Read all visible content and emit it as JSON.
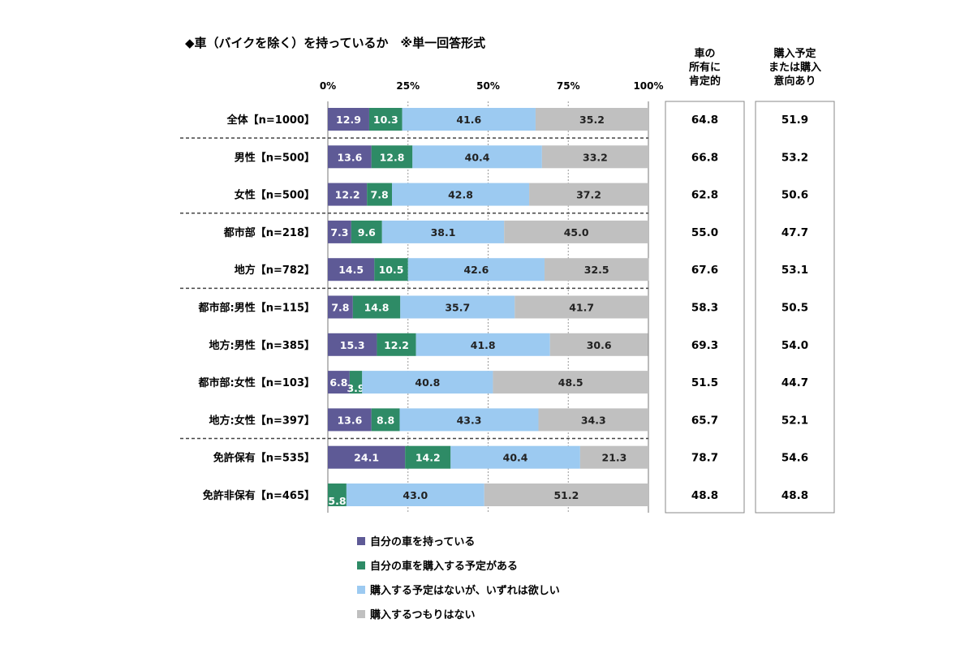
{
  "chart_data": {
    "type": "bar",
    "orientation": "horizontal",
    "stacked": true,
    "percent_stacked": true,
    "title": "◆車（バイクを除く）を持っているか　※単一回答形式",
    "xaxis_ticks": [
      "0%",
      "25%",
      "50%",
      "75%",
      "100%"
    ],
    "xlim": [
      0,
      100
    ],
    "categories": [
      "全体【n=1000】",
      "男性【n=500】",
      "女性【n=500】",
      "都市部【n=218】",
      "地方【n=782】",
      "都市部:男性【n=115】",
      "地方:男性【n=385】",
      "都市部:女性【n=103】",
      "地方:女性【n=397】",
      "免許保有【n=535】",
      "免許非保有【n=465】"
    ],
    "series": [
      {
        "name": "自分の車を持っている",
        "color": "#5e5a96",
        "values": [
          12.9,
          13.6,
          12.2,
          7.3,
          14.5,
          7.8,
          15.3,
          6.8,
          13.6,
          24.1,
          0
        ]
      },
      {
        "name": "自分の車を購入する予定がある",
        "color": "#2e8b66",
        "values": [
          10.3,
          12.8,
          7.8,
          9.6,
          10.5,
          14.8,
          12.2,
          3.9,
          8.8,
          14.2,
          5.8
        ]
      },
      {
        "name": "購入する予定はないが、いずれは欲しい",
        "color": "#9ccaf1",
        "values": [
          41.6,
          40.4,
          42.8,
          38.1,
          42.6,
          35.7,
          41.8,
          40.8,
          43.3,
          40.4,
          43.0
        ]
      },
      {
        "name": "購入するつもりはない",
        "color": "#c0c0c0",
        "values": [
          35.2,
          33.2,
          37.2,
          45.0,
          32.5,
          41.7,
          30.6,
          48.5,
          34.3,
          21.3,
          51.2
        ]
      }
    ],
    "group_separators_after": [
      0,
      2,
      4,
      8
    ],
    "legend_position": "bottom",
    "summary_columns": [
      {
        "header": [
          "車の",
          "所有に",
          "肯定的"
        ],
        "values": [
          "64.8",
          "66.8",
          "62.8",
          "55.0",
          "67.6",
          "58.3",
          "69.3",
          "51.5",
          "65.7",
          "78.7",
          "48.8"
        ]
      },
      {
        "header": [
          "購入予定",
          "または購入",
          "意向あり"
        ],
        "values": [
          "51.9",
          "53.2",
          "50.6",
          "47.7",
          "53.1",
          "50.5",
          "54.0",
          "44.7",
          "52.1",
          "54.6",
          "48.8"
        ]
      }
    ]
  }
}
